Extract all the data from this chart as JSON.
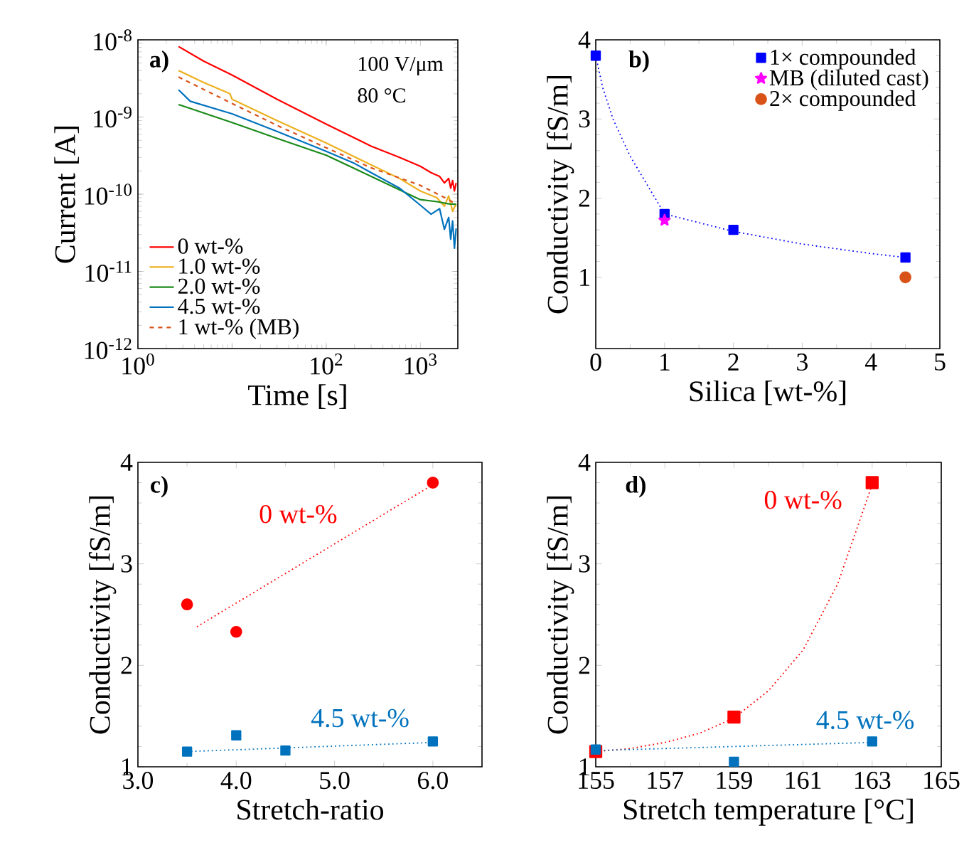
{
  "chart_data": [
    {
      "type": "line",
      "xlabel": "Time [s]",
      "ylabel": "Current [A]",
      "log": "xy",
      "legend": "bottom left",
      "marker": "none",
      "xlim": [
        1,
        2500
      ],
      "ylim": [
        1e-12,
        1e-08
      ],
      "xticks": [
        {
          "value": 1,
          "label": "10$^{0}$"
        },
        {
          "value": 10,
          "label": null
        },
        {
          "value": 100,
          "label": "10$^{2}$"
        },
        {
          "value": 1000,
          "label": "10$^{3}$"
        }
      ],
      "yticks": [
        {
          "value": 1e-12,
          "label": "10$^{-12}$"
        },
        {
          "value": 1e-11,
          "label": "10$^{-11}$"
        },
        {
          "value": 1e-10,
          "label": "10$^{-10}$"
        },
        {
          "value": 1e-09,
          "label": "10$^{-9}$"
        },
        {
          "value": 1e-08,
          "label": "10$^{-8}$"
        }
      ],
      "annotations": [
        "a)",
        "100 V/μm",
        "80 °C"
      ],
      "series": [
        {
          "name": "0 wt-%",
          "color": "#ff0000",
          "x": [
            2.7,
            5,
            10,
            30,
            100,
            300,
            600,
            1000,
            1300,
            1600,
            1800,
            2000,
            2100,
            2200,
            2300,
            2400
          ],
          "values": [
            8.2e-09,
            5.3e-09,
            3.5e-09,
            1.7e-09,
            8.1e-10,
            4.2e-10,
            3e-10,
            2.3e-10,
            1.9e-10,
            1.7e-10,
            1.4e-10,
            1.6e-10,
            1.2e-10,
            1.5e-10,
            1.1e-10,
            1.4e-10
          ]
        },
        {
          "name": "1.0 wt-%",
          "color": "#edb120",
          "x": [
            2.7,
            5,
            9.5,
            10,
            30,
            100,
            300,
            600,
            1000,
            1500,
            1800,
            2000,
            2200,
            2400
          ],
          "values": [
            4e-09,
            2.8e-09,
            2e-09,
            1.7e-09,
            9e-10,
            4.6e-10,
            2.4e-10,
            1.6e-10,
            1.1e-10,
            9e-11,
            7e-11,
            9.5e-11,
            6e-11,
            7.5e-11
          ]
        },
        {
          "name": "2.0 wt-%",
          "color": "#1a8a1a",
          "x": [
            2.7,
            10,
            30,
            100,
            300,
            1000,
            1500,
            2000,
            2400
          ],
          "values": [
            1.45e-09,
            8.5e-10,
            5.3e-10,
            3.2e-10,
            1.7e-10,
            8.5e-11,
            8e-11,
            7.5e-11,
            7.4e-11
          ]
        },
        {
          "name": "4.5 wt-%",
          "color": "#0072bd",
          "x": [
            2.7,
            3.6,
            10,
            30,
            100,
            200,
            300,
            600,
            1000,
            1300,
            1600,
            1800,
            2000,
            2100,
            2200,
            2300,
            2400
          ],
          "values": [
            2.25e-09,
            1.6e-09,
            1.1e-09,
            6.5e-10,
            3.6e-10,
            2.5e-10,
            1.9e-10,
            1.2e-10,
            7.2e-11,
            5.5e-11,
            6.5e-11,
            3.5e-11,
            5e-11,
            2.6e-11,
            4.5e-11,
            2e-11,
            3.6e-11
          ]
        },
        {
          "name": "1 wt-% (MB)",
          "color": "#d95319",
          "line_style": "dashed",
          "x": [
            2.7,
            10,
            30,
            100,
            300,
            1000,
            2000,
            2400
          ],
          "values": [
            3.3e-09,
            1.5e-09,
            7.8e-10,
            4e-10,
            2.2e-10,
            1.3e-10,
            8.5e-11,
            7.4e-11
          ]
        }
      ]
    },
    {
      "type": "scatter",
      "xlabel": "Silica [wt-%]",
      "ylabel": "Conductivity [fS/m]",
      "legend": "top right",
      "xlim": [
        0,
        5
      ],
      "ylim": [
        0.1,
        4
      ],
      "xticks": [
        0,
        1,
        2,
        3,
        4,
        5
      ],
      "yticks": [
        1,
        2,
        3,
        4
      ],
      "annotations": [
        "b)"
      ],
      "series": [
        {
          "type": "line",
          "color": "#0000ff",
          "line_style": "dotted",
          "marker": "none",
          "x": [
            0,
            0.1,
            0.25,
            0.5,
            1,
            1.5,
            2,
            3,
            4,
            4.5
          ],
          "values": [
            3.8,
            3.4,
            3.0,
            2.53,
            1.8,
            1.69,
            1.58,
            1.42,
            1.3,
            1.25
          ]
        },
        {
          "name": "1× compounded",
          "color": "#0000ff",
          "marker": "square",
          "x": [
            0,
            1,
            2,
            4.5
          ],
          "values": [
            3.8,
            1.8,
            1.6,
            1.25
          ]
        },
        {
          "name": "MB (diluted cast)",
          "color": "#ff00ff",
          "marker": "star",
          "x": [
            1
          ],
          "values": [
            1.72
          ]
        },
        {
          "name": "2× compounded",
          "color": "#d95319",
          "marker": "circle",
          "x": [
            4.5
          ],
          "values": [
            1.0
          ]
        }
      ]
    },
    {
      "type": "scatter",
      "xlabel": "Stretch-ratio",
      "ylabel": "Conductivity [fS/m]",
      "xlim": [
        3,
        6.5
      ],
      "ylim": [
        1,
        4
      ],
      "xticks": [
        {
          "value": 3,
          "label": "3.0"
        },
        {
          "value": 4,
          "label": "4.0"
        },
        {
          "value": 5,
          "label": "5.0"
        },
        {
          "value": 6,
          "label": "6.0"
        }
      ],
      "yticks": [
        1,
        2,
        3,
        4
      ],
      "annotations": [
        "c)"
      ],
      "series": [
        {
          "name": "0 wt-%",
          "color": "#ff0000",
          "marker": "circle",
          "x": [
            3.5,
            4,
            6
          ],
          "values": [
            2.6,
            2.33,
            3.8
          ]
        },
        {
          "type": "line",
          "color": "#ff0000",
          "line_style": "dotted",
          "marker": "none",
          "x": [
            3.6,
            6
          ],
          "values": [
            2.38,
            3.78
          ]
        },
        {
          "name": "4.5 wt-%",
          "color": "#0072bd",
          "marker": "square",
          "x": [
            3.5,
            4,
            4.5,
            6
          ],
          "values": [
            1.15,
            1.31,
            1.16,
            1.25
          ]
        },
        {
          "type": "line",
          "color": "#0072bd",
          "line_style": "dotted",
          "marker": "none",
          "x": [
            3.5,
            6
          ],
          "values": [
            1.15,
            1.24
          ]
        }
      ]
    },
    {
      "type": "scatter",
      "xlabel": "Stretch temperature [°C]",
      "ylabel": "Conductivity [fS/m]",
      "xlim": [
        155,
        165
      ],
      "ylim": [
        1,
        4
      ],
      "xticks": [
        155,
        157,
        159,
        161,
        163,
        165
      ],
      "yticks": [
        1,
        2,
        3,
        4
      ],
      "annotations": [
        "d)"
      ],
      "series": [
        {
          "name": "0 wt-%",
          "color": "#ff0000",
          "marker": "square",
          "x": [
            155,
            159,
            163
          ],
          "values": [
            1.15,
            1.49,
            3.8
          ]
        },
        {
          "type": "line",
          "color": "#ff0000",
          "line_style": "dotted",
          "marker": "none",
          "x": [
            155,
            156,
            157,
            158,
            159,
            160,
            161,
            162,
            163
          ],
          "values": [
            1.15,
            1.18,
            1.24,
            1.33,
            1.48,
            1.75,
            2.15,
            2.8,
            3.78
          ]
        },
        {
          "name": "4.5 wt-%",
          "color": "#0072bd",
          "marker": "square",
          "x": [
            155,
            159,
            163
          ],
          "values": [
            1.17,
            1.05,
            1.25
          ]
        },
        {
          "type": "line",
          "color": "#0072bd",
          "line_style": "dotted",
          "marker": "none",
          "x": [
            155,
            163
          ],
          "values": [
            1.16,
            1.24
          ]
        }
      ]
    }
  ]
}
